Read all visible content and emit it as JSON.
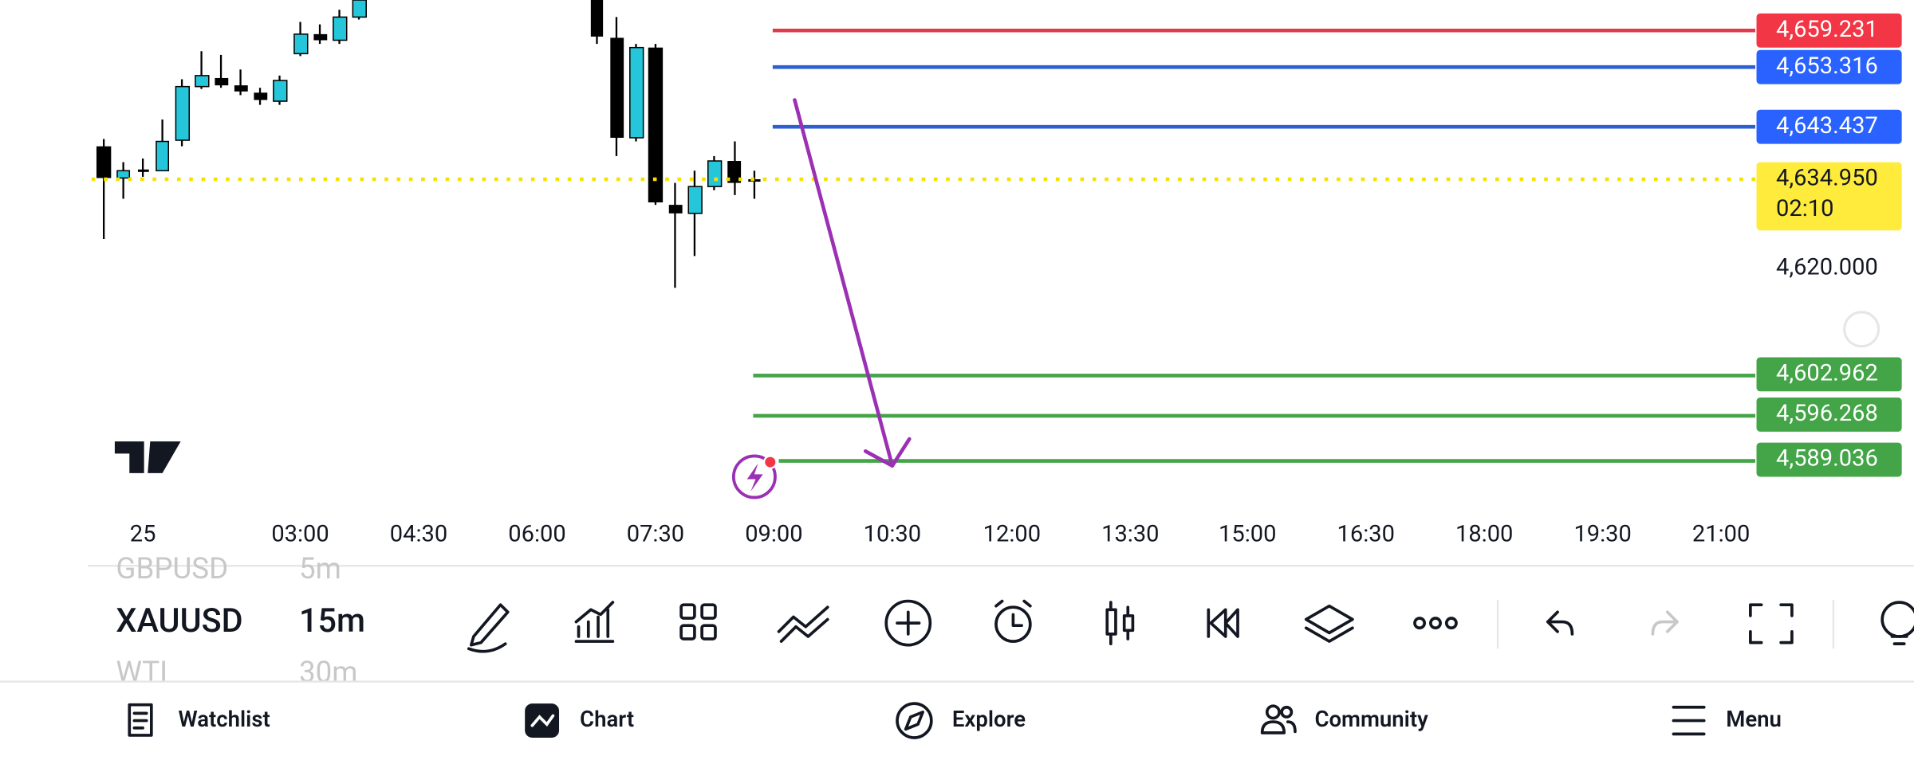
{
  "price_scale": {
    "levels": [
      "4,659.231",
      "4,653.316",
      "4,643.437",
      "4,634.950",
      "4,602.962",
      "4,596.268",
      "4,589.036"
    ],
    "countdown": "02:10",
    "axis_label": "4,620.000"
  },
  "time_axis": [
    "25",
    "03:00",
    "04:30",
    "06:00",
    "07:30",
    "09:00",
    "10:30",
    "12:00",
    "13:30",
    "15:00",
    "16:30",
    "18:00",
    "19:30",
    "21:00"
  ],
  "symbols": [
    {
      "symbol": "GBPUSD",
      "interval": "5m"
    },
    {
      "symbol": "XAUUSD",
      "interval": "15m"
    },
    {
      "symbol": "WTI",
      "interval": "30m"
    }
  ],
  "nav": [
    "Watchlist",
    "Chart",
    "Explore",
    "Community",
    "Menu"
  ]
}
